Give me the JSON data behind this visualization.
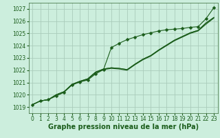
{
  "bg_color": "#cceedd",
  "grid_color": "#aaccbb",
  "line_color": "#1a5c1a",
  "xlabel": "Graphe pression niveau de la mer (hPa)",
  "xlabel_fontsize": 7.0,
  "xlim": [
    -0.5,
    23.5
  ],
  "ylim": [
    1018.5,
    1027.5
  ],
  "yticks": [
    1019,
    1020,
    1021,
    1022,
    1023,
    1024,
    1025,
    1026,
    1027
  ],
  "xticks": [
    0,
    1,
    2,
    3,
    4,
    5,
    6,
    7,
    8,
    9,
    10,
    11,
    12,
    13,
    14,
    15,
    16,
    17,
    18,
    19,
    20,
    21,
    22,
    23
  ],
  "series": [
    [
      1019.2,
      1019.5,
      1019.6,
      1019.9,
      1020.2,
      1020.8,
      1021.05,
      1021.2,
      1021.7,
      1022.05,
      1023.85,
      1024.2,
      1024.5,
      1024.7,
      1024.9,
      1025.05,
      1025.2,
      1025.3,
      1025.35,
      1025.4,
      1025.5,
      1025.55,
      1026.2,
      1027.1
    ],
    [
      1019.2,
      1019.5,
      1019.6,
      1020.0,
      1020.25,
      1020.85,
      1021.1,
      1021.3,
      1021.85,
      1022.1,
      1022.2,
      1022.15,
      1022.05,
      1022.5,
      1022.9,
      1023.2,
      1023.65,
      1024.05,
      1024.45,
      1024.75,
      1025.05,
      1025.25,
      1025.85,
      1026.3
    ],
    [
      1019.2,
      1019.5,
      1019.6,
      1020.0,
      1020.25,
      1020.85,
      1021.1,
      1021.3,
      1021.85,
      1022.1,
      1022.2,
      1022.15,
      1022.05,
      1022.5,
      1022.9,
      1023.2,
      1023.65,
      1024.05,
      1024.45,
      1024.75,
      1025.05,
      1025.25,
      1025.85,
      1026.3
    ],
    [
      1019.2,
      1019.5,
      1019.6,
      1020.0,
      1020.25,
      1020.8,
      1021.05,
      1021.25,
      1021.8,
      1022.05,
      1022.15,
      1022.1,
      1022.0,
      1022.45,
      1022.85,
      1023.15,
      1023.6,
      1024.0,
      1024.4,
      1024.7,
      1025.0,
      1025.2,
      1025.75,
      1026.25
    ]
  ],
  "marker_size": 2.5,
  "linewidth": 0.8,
  "tick_fontsize": 5.5,
  "spine_color": "#336633"
}
